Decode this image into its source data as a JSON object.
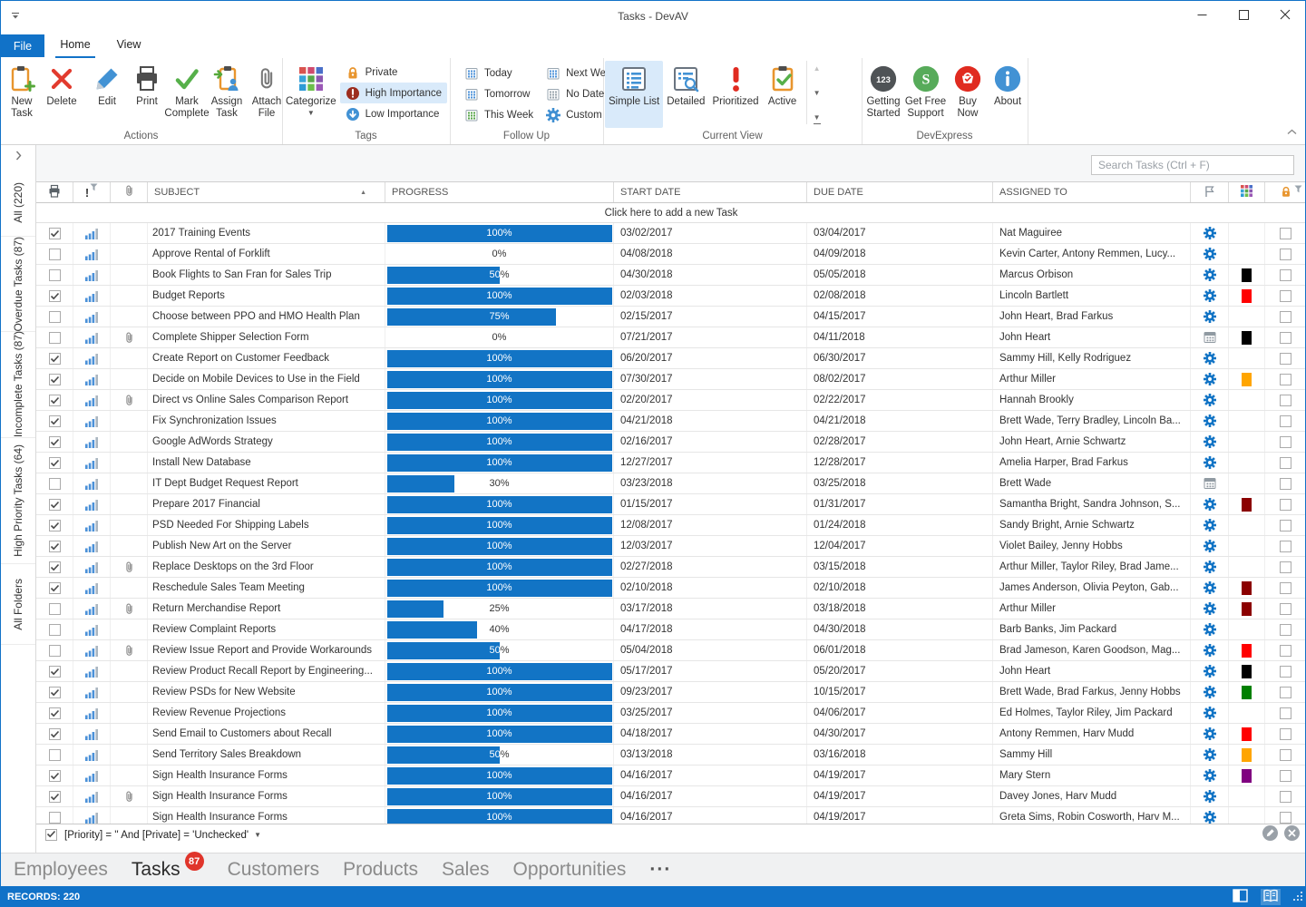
{
  "titlebar": {
    "title": "Tasks - DevAV"
  },
  "ribbon": {
    "file_tab": "File",
    "tabs": [
      {
        "label": "Home",
        "active": true
      },
      {
        "label": "View",
        "active": false
      }
    ],
    "groups": [
      {
        "label": "Actions",
        "layout": "large",
        "buttons": [
          {
            "label": "New Task",
            "lines": [
              "New",
              "Task"
            ],
            "icon": "new-task"
          },
          {
            "label": "Delete",
            "lines": [
              "Delete"
            ],
            "icon": "delete",
            "sep_after": true
          },
          {
            "label": "Edit",
            "lines": [
              "Edit"
            ],
            "icon": "edit"
          },
          {
            "label": "Print",
            "lines": [
              "Print"
            ],
            "icon": "print"
          },
          {
            "label": "Mark Complete",
            "lines": [
              "Mark",
              "Complete"
            ],
            "icon": "mark-complete"
          },
          {
            "label": "Assign Task",
            "lines": [
              "Assign",
              "Task"
            ],
            "icon": "assign-task"
          },
          {
            "label": "Attach File",
            "lines": [
              "Attach",
              "File"
            ],
            "icon": "attach-file"
          }
        ]
      },
      {
        "label": "Tags",
        "layout": "tags",
        "big": {
          "label": "Categorize",
          "lines": [
            "Categorize"
          ],
          "icon": "categorize",
          "dropdown": true
        },
        "small": [
          {
            "label": "Private",
            "icon": "private"
          },
          {
            "label": "High Importance",
            "icon": "high-importance",
            "active": true
          },
          {
            "label": "Low Importance",
            "icon": "low-importance"
          }
        ]
      },
      {
        "label": "Follow Up",
        "layout": "grid2",
        "small": [
          {
            "label": "Today",
            "icon": "cal-blue"
          },
          {
            "label": "Tomorrow",
            "icon": "cal-blue"
          },
          {
            "label": "This Week",
            "icon": "cal-green"
          },
          {
            "label": "Next Week",
            "icon": "cal-blue"
          },
          {
            "label": "No Date",
            "icon": "cal-gray"
          },
          {
            "label": "Custom",
            "icon": "gear-blue"
          }
        ]
      },
      {
        "label": "Current View",
        "layout": "large",
        "scroller": true,
        "buttons": [
          {
            "label": "Simple List",
            "lines": [
              "Simple List"
            ],
            "icon": "simple-list",
            "active": true
          },
          {
            "label": "Detailed",
            "lines": [
              "Detailed"
            ],
            "icon": "detailed"
          },
          {
            "label": "Prioritized",
            "lines": [
              "Prioritized"
            ],
            "icon": "prioritized"
          },
          {
            "label": "Active",
            "lines": [
              "Active"
            ],
            "icon": "active"
          }
        ]
      },
      {
        "label": "DevExpress",
        "layout": "large",
        "buttons": [
          {
            "label": "Getting Started",
            "lines": [
              "Getting",
              "Started"
            ],
            "icon": "getting-started"
          },
          {
            "label": "Get Free Support",
            "lines": [
              "Get Free",
              "Support"
            ],
            "icon": "support"
          },
          {
            "label": "Buy Now",
            "lines": [
              "Buy",
              "Now"
            ],
            "icon": "buy-now"
          },
          {
            "label": "About",
            "lines": [
              "About"
            ],
            "icon": "about"
          }
        ]
      }
    ]
  },
  "sidebar": {
    "items": [
      {
        "label": "All (220)"
      },
      {
        "label": "Overdue Tasks (87)"
      },
      {
        "label": "Incomplete Tasks (87)"
      },
      {
        "label": "High Priority Tasks (64)"
      },
      {
        "label": "All Folders"
      }
    ]
  },
  "search": {
    "placeholder": "Search Tasks (Ctrl + F)"
  },
  "grid": {
    "header": {
      "subject": "SUBJECT",
      "progress": "PROGRESS",
      "start_date": "START DATE",
      "due_date": "DUE DATE",
      "assigned_to": "ASSIGNED TO"
    },
    "add_row_text": "Click here to add a new Task",
    "rows": [
      {
        "subject": "2017 Training Events",
        "progress": 100,
        "start": "03/02/2017",
        "due": "03/04/2017",
        "assigned": "Nat Maguiree",
        "completed": true,
        "attachment": false,
        "flag": "gear",
        "category": null
      },
      {
        "subject": "Approve Rental of Forklift",
        "progress": 0,
        "start": "04/08/2018",
        "due": "04/09/2018",
        "assigned": "Kevin Carter, Antony Remmen, Lucy...",
        "completed": false,
        "attachment": false,
        "flag": "gear",
        "category": null
      },
      {
        "subject": "Book Flights to San Fran for Sales Trip",
        "progress": 50,
        "start": "04/30/2018",
        "due": "05/05/2018",
        "assigned": "Marcus Orbison",
        "completed": false,
        "attachment": false,
        "flag": "gear",
        "category": "#000000"
      },
      {
        "subject": "Budget Reports",
        "progress": 100,
        "start": "02/03/2018",
        "due": "02/08/2018",
        "assigned": "Lincoln Bartlett",
        "completed": true,
        "attachment": false,
        "flag": "gear",
        "category": "#FF0000"
      },
      {
        "subject": "Choose between PPO and HMO Health Plan",
        "progress": 75,
        "start": "02/15/2017",
        "due": "04/15/2017",
        "assigned": "John Heart, Brad Farkus",
        "completed": false,
        "attachment": false,
        "flag": "gear",
        "category": null
      },
      {
        "subject": "Complete Shipper Selection Form",
        "progress": 0,
        "start": "07/21/2017",
        "due": "04/11/2018",
        "assigned": "John Heart",
        "completed": false,
        "attachment": true,
        "flag": "calendar",
        "category": "#000000"
      },
      {
        "subject": "Create Report on Customer Feedback",
        "progress": 100,
        "start": "06/20/2017",
        "due": "06/30/2017",
        "assigned": "Sammy Hill, Kelly Rodriguez",
        "completed": true,
        "attachment": false,
        "flag": "gear",
        "category": null
      },
      {
        "subject": "Decide on Mobile Devices to Use in the Field",
        "progress": 100,
        "start": "07/30/2017",
        "due": "08/02/2017",
        "assigned": "Arthur Miller",
        "completed": true,
        "attachment": false,
        "flag": "gear",
        "category": "#FFA500"
      },
      {
        "subject": "Direct vs Online Sales Comparison Report",
        "progress": 100,
        "start": "02/20/2017",
        "due": "02/22/2017",
        "assigned": "Hannah Brookly",
        "completed": true,
        "attachment": true,
        "flag": "gear",
        "category": null
      },
      {
        "subject": "Fix Synchronization Issues",
        "progress": 100,
        "start": "04/21/2018",
        "due": "04/21/2018",
        "assigned": "Brett Wade, Terry Bradley, Lincoln Ba...",
        "completed": true,
        "attachment": false,
        "flag": "gear",
        "category": null
      },
      {
        "subject": "Google AdWords Strategy",
        "progress": 100,
        "start": "02/16/2017",
        "due": "02/28/2017",
        "assigned": "John Heart, Arnie Schwartz",
        "completed": true,
        "attachment": false,
        "flag": "gear",
        "category": null
      },
      {
        "subject": "Install New Database",
        "progress": 100,
        "start": "12/27/2017",
        "due": "12/28/2017",
        "assigned": "Amelia Harper, Brad Farkus",
        "completed": true,
        "attachment": false,
        "flag": "gear",
        "category": null
      },
      {
        "subject": "IT Dept Budget Request Report",
        "progress": 30,
        "start": "03/23/2018",
        "due": "03/25/2018",
        "assigned": "Brett Wade",
        "completed": false,
        "attachment": false,
        "flag": "calendar",
        "category": null
      },
      {
        "subject": "Prepare 2017 Financial",
        "progress": 100,
        "start": "01/15/2017",
        "due": "01/31/2017",
        "assigned": "Samantha Bright, Sandra Johnson, S...",
        "completed": true,
        "attachment": false,
        "flag": "gear",
        "category": "#8B0000"
      },
      {
        "subject": "PSD Needed For Shipping Labels",
        "progress": 100,
        "start": "12/08/2017",
        "due": "01/24/2018",
        "assigned": "Sandy Bright, Arnie Schwartz",
        "completed": true,
        "attachment": false,
        "flag": "gear",
        "category": null
      },
      {
        "subject": "Publish New Art on the Server",
        "progress": 100,
        "start": "12/03/2017",
        "due": "12/04/2017",
        "assigned": "Violet Bailey, Jenny Hobbs",
        "completed": true,
        "attachment": false,
        "flag": "gear",
        "category": null
      },
      {
        "subject": "Replace Desktops on the 3rd Floor",
        "progress": 100,
        "start": "02/27/2018",
        "due": "03/15/2018",
        "assigned": "Arthur Miller, Taylor Riley, Brad Jame...",
        "completed": true,
        "attachment": true,
        "flag": "gear",
        "category": null
      },
      {
        "subject": "Reschedule Sales Team Meeting",
        "progress": 100,
        "start": "02/10/2018",
        "due": "02/10/2018",
        "assigned": "James Anderson, Olivia Peyton, Gab...",
        "completed": true,
        "attachment": false,
        "flag": "gear",
        "category": "#8B0000"
      },
      {
        "subject": "Return Merchandise Report",
        "progress": 25,
        "start": "03/17/2018",
        "due": "03/18/2018",
        "assigned": "Arthur Miller",
        "completed": false,
        "attachment": true,
        "flag": "gear",
        "category": "#8B0000"
      },
      {
        "subject": "Review Complaint Reports",
        "progress": 40,
        "start": "04/17/2018",
        "due": "04/30/2018",
        "assigned": "Barb Banks, Jim Packard",
        "completed": false,
        "attachment": false,
        "flag": "gear",
        "category": null
      },
      {
        "subject": "Review Issue Report and Provide Workarounds",
        "progress": 50,
        "start": "05/04/2018",
        "due": "06/01/2018",
        "assigned": "Brad Jameson, Karen Goodson, Mag...",
        "completed": false,
        "attachment": true,
        "flag": "gear",
        "category": "#FF0000"
      },
      {
        "subject": "Review Product Recall Report by Engineering...",
        "progress": 100,
        "start": "05/17/2017",
        "due": "05/20/2017",
        "assigned": "John Heart",
        "completed": true,
        "attachment": false,
        "flag": "gear",
        "category": "#000000"
      },
      {
        "subject": "Review PSDs for New Website",
        "progress": 100,
        "start": "09/23/2017",
        "due": "10/15/2017",
        "assigned": "Brett Wade, Brad Farkus, Jenny Hobbs",
        "completed": true,
        "attachment": false,
        "flag": "gear",
        "category": "#008000"
      },
      {
        "subject": "Review Revenue Projections",
        "progress": 100,
        "start": "03/25/2017",
        "due": "04/06/2017",
        "assigned": "Ed Holmes, Taylor Riley, Jim Packard",
        "completed": true,
        "attachment": false,
        "flag": "gear",
        "category": null
      },
      {
        "subject": "Send Email to Customers about Recall",
        "progress": 100,
        "start": "04/18/2017",
        "due": "04/30/2017",
        "assigned": "Antony Remmen, Harv Mudd",
        "completed": true,
        "attachment": false,
        "flag": "gear",
        "category": "#FF0000"
      },
      {
        "subject": "Send Territory Sales Breakdown",
        "progress": 50,
        "start": "03/13/2018",
        "due": "03/16/2018",
        "assigned": "Sammy Hill",
        "completed": false,
        "attachment": false,
        "flag": "gear",
        "category": "#FFA500"
      },
      {
        "subject": "Sign Health Insurance Forms",
        "progress": 100,
        "start": "04/16/2017",
        "due": "04/19/2017",
        "assigned": "Mary Stern",
        "completed": true,
        "attachment": false,
        "flag": "gear",
        "category": "#800080"
      },
      {
        "subject": "Sign Health Insurance Forms",
        "progress": 100,
        "start": "04/16/2017",
        "due": "04/19/2017",
        "assigned": "Davey Jones, Harv Mudd",
        "completed": true,
        "attachment": true,
        "flag": "gear",
        "category": null
      },
      {
        "subject": "Sign Health Insurance Forms",
        "progress": 100,
        "start": "04/16/2017",
        "due": "04/19/2017",
        "assigned": "Greta Sims, Robin Cosworth, Harv M...",
        "completed": false,
        "attachment": false,
        "flag": "gear",
        "category": null
      }
    ]
  },
  "filter_bar": {
    "expression": "[Priority] = '' And [Private] = 'Unchecked'",
    "enabled": true
  },
  "bottom_tabs": {
    "tabs": [
      {
        "label": "Employees"
      },
      {
        "label": "Tasks",
        "badge": "87",
        "active": true
      },
      {
        "label": "Customers"
      },
      {
        "label": "Products"
      },
      {
        "label": "Sales"
      },
      {
        "label": "Opportunities"
      },
      {
        "label": "···",
        "overflow": true
      }
    ]
  },
  "statusbar": {
    "records_label": "RECORDS: 220"
  },
  "colors": {
    "accent": "#1172C8",
    "progress_fill": "#1274C5",
    "badge_red": "#E0352B",
    "statusbar_bg": "#1172C8",
    "selected_ribbon_bg": "#D9EAFA"
  }
}
